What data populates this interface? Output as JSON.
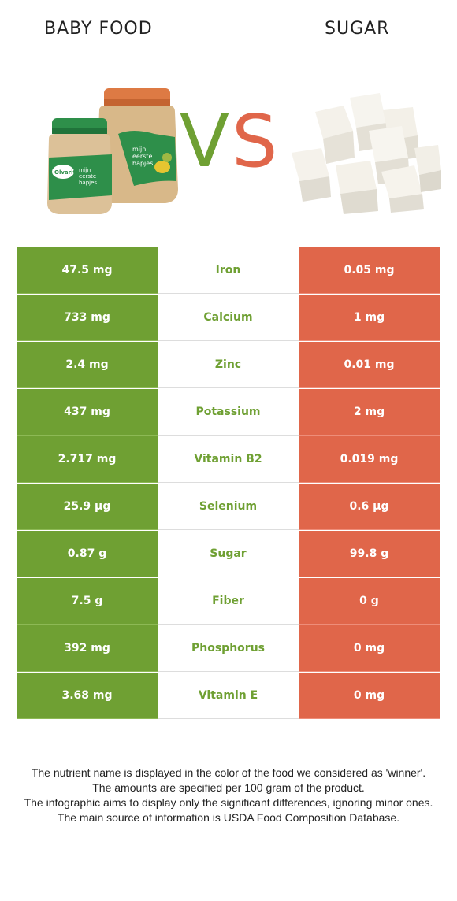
{
  "header": {
    "left_food": "BABY FOOD",
    "right_food": "SUGAR",
    "vs_v": "V",
    "vs_s": "S"
  },
  "colors": {
    "winner_left": "#6fa033",
    "winner_right": "#e0664a"
  },
  "jar_labels": {
    "brand": "Olvarit",
    "line1": "mijn",
    "line2": "eerste",
    "line3": "hapjes"
  },
  "rows": [
    {
      "left": "47.5 mg",
      "nutrient": "Iron",
      "right": "0.05 mg",
      "winner": "left"
    },
    {
      "left": "733 mg",
      "nutrient": "Calcium",
      "right": "1 mg",
      "winner": "left"
    },
    {
      "left": "2.4 mg",
      "nutrient": "Zinc",
      "right": "0.01 mg",
      "winner": "left"
    },
    {
      "left": "437 mg",
      "nutrient": "Potassium",
      "right": "2 mg",
      "winner": "left"
    },
    {
      "left": "2.717 mg",
      "nutrient": "Vitamin B2",
      "right": "0.019 mg",
      "winner": "left"
    },
    {
      "left": "25.9 µg",
      "nutrient": "Selenium",
      "right": "0.6 µg",
      "winner": "left"
    },
    {
      "left": "0.87 g",
      "nutrient": "Sugar",
      "right": "99.8 g",
      "winner": "left"
    },
    {
      "left": "7.5 g",
      "nutrient": "Fiber",
      "right": "0 g",
      "winner": "left"
    },
    {
      "left": "392 mg",
      "nutrient": "Phosphorus",
      "right": "0 mg",
      "winner": "left"
    },
    {
      "left": "3.68 mg",
      "nutrient": "Vitamin E",
      "right": "0 mg",
      "winner": "left"
    }
  ],
  "footer": {
    "line1": "The nutrient name is displayed in the color of the food we considered as 'winner'.",
    "line2": "The amounts are specified per 100 gram of the product.",
    "line3": "The infographic aims to display only the significant differences, ignoring minor ones.",
    "line4": "The main source of information is USDA Food Composition Database."
  }
}
